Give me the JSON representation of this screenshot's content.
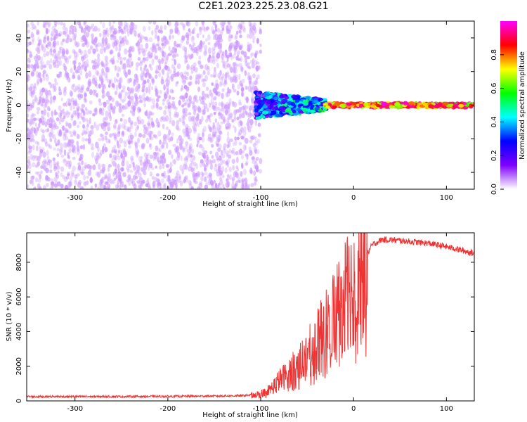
{
  "title": "C2E1.2023.225.23.08.G21",
  "chart_data": [
    {
      "type": "heatmap",
      "xlabel": "Height of straight line (km)",
      "ylabel": "Frequency (Hz)",
      "xlim": [
        -352,
        130
      ],
      "ylim": [
        -50,
        50
      ],
      "xticks": [
        -300,
        -200,
        -100,
        0,
        100
      ],
      "yticks": [
        -40,
        -20,
        0,
        20,
        40
      ],
      "colorbar": {
        "label": "Normalized spectral amplitude",
        "range": [
          0,
          1
        ],
        "ticks": [
          "0.0",
          "0.2",
          "0.4",
          "0.6",
          "0.8"
        ],
        "colors": [
          "#ffffff",
          "#8000ff",
          "#0000ff",
          "#00ffff",
          "#00ff00",
          "#ffff00",
          "#ff0000",
          "#ff00ff"
        ]
      },
      "regions": [
        {
          "name": "noise",
          "x": [
            -352,
            -100
          ],
          "freq": [
            -50,
            50
          ],
          "amplitude": [
            0.0,
            0.1
          ]
        },
        {
          "name": "transition",
          "x": [
            -105,
            -30
          ],
          "freq": [
            -8,
            8
          ],
          "amplitude": [
            0.1,
            0.45
          ]
        },
        {
          "name": "tone",
          "x": [
            -30,
            130
          ],
          "freq": [
            -2,
            2
          ],
          "amplitude": [
            0.6,
            1.0
          ]
        }
      ],
      "grid": false
    },
    {
      "type": "line",
      "xlabel": "Height of straight line (km)",
      "ylabel": "SNR (10 * v/v)",
      "xlim": [
        -352,
        130
      ],
      "ylim": [
        0,
        9700
      ],
      "xticks": [
        -300,
        -200,
        -100,
        0,
        100
      ],
      "yticks": [
        0,
        2000,
        4000,
        6000,
        8000
      ],
      "color": "#ef3333",
      "series": [
        {
          "x": [
            -352,
            -300,
            -250,
            -200,
            -150,
            -120,
            -100,
            -90,
            -80,
            -70,
            -60,
            -50,
            -40,
            -30,
            -20,
            -10,
            0,
            10,
            15,
            20,
            30,
            40,
            60,
            80,
            100,
            120,
            130
          ],
          "values": [
            250,
            250,
            250,
            260,
            280,
            300,
            400,
            650,
            1200,
            1600,
            2100,
            2700,
            3300,
            4300,
            5200,
            6000,
            6900,
            7900,
            8500,
            9000,
            9300,
            9300,
            9200,
            9100,
            8900,
            8650,
            8500
          ]
        }
      ],
      "grid": false
    }
  ]
}
